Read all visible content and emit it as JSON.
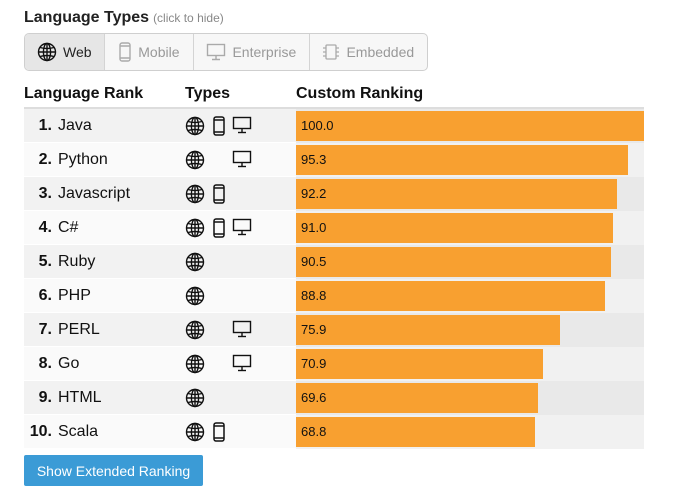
{
  "header": {
    "title": "Language Types",
    "hint": "(click to hide)"
  },
  "filters": [
    {
      "label": "Web",
      "icon": "globe-icon",
      "active": true
    },
    {
      "label": "Mobile",
      "icon": "mobile-phone-icon",
      "active": false
    },
    {
      "label": "Enterprise",
      "icon": "monitor-icon",
      "active": false
    },
    {
      "label": "Embedded",
      "icon": "chip-icon",
      "active": false
    }
  ],
  "table": {
    "col_rank": "Language Rank",
    "col_types": "Types",
    "col_ranking": "Custom Ranking",
    "max_value": 100.0,
    "rows": [
      {
        "rank": "1.",
        "name": "Java",
        "types": [
          "web",
          "mobile",
          "enterprise"
        ],
        "score": 100.0,
        "score_label": "100.0"
      },
      {
        "rank": "2.",
        "name": "Python",
        "types": [
          "web",
          "enterprise"
        ],
        "score": 95.3,
        "score_label": "95.3"
      },
      {
        "rank": "3.",
        "name": "Javascript",
        "types": [
          "web",
          "mobile"
        ],
        "score": 92.2,
        "score_label": "92.2"
      },
      {
        "rank": "4.",
        "name": "C#",
        "types": [
          "web",
          "mobile",
          "enterprise"
        ],
        "score": 91.0,
        "score_label": "91.0"
      },
      {
        "rank": "5.",
        "name": "Ruby",
        "types": [
          "web"
        ],
        "score": 90.5,
        "score_label": "90.5"
      },
      {
        "rank": "6.",
        "name": "PHP",
        "types": [
          "web"
        ],
        "score": 88.8,
        "score_label": "88.8"
      },
      {
        "rank": "7.",
        "name": "PERL",
        "types": [
          "web",
          "enterprise"
        ],
        "score": 75.9,
        "score_label": "75.9"
      },
      {
        "rank": "8.",
        "name": "Go",
        "types": [
          "web",
          "enterprise"
        ],
        "score": 70.9,
        "score_label": "70.9"
      },
      {
        "rank": "9.",
        "name": "HTML",
        "types": [
          "web"
        ],
        "score": 69.6,
        "score_label": "69.6"
      },
      {
        "rank": "10.",
        "name": "Scala",
        "types": [
          "web",
          "mobile"
        ],
        "score": 68.8,
        "score_label": "68.8"
      }
    ]
  },
  "extended_button": {
    "label": "Show Extended Ranking"
  },
  "colors": {
    "bar": "#f8a030",
    "button": "#3b9bd6"
  }
}
